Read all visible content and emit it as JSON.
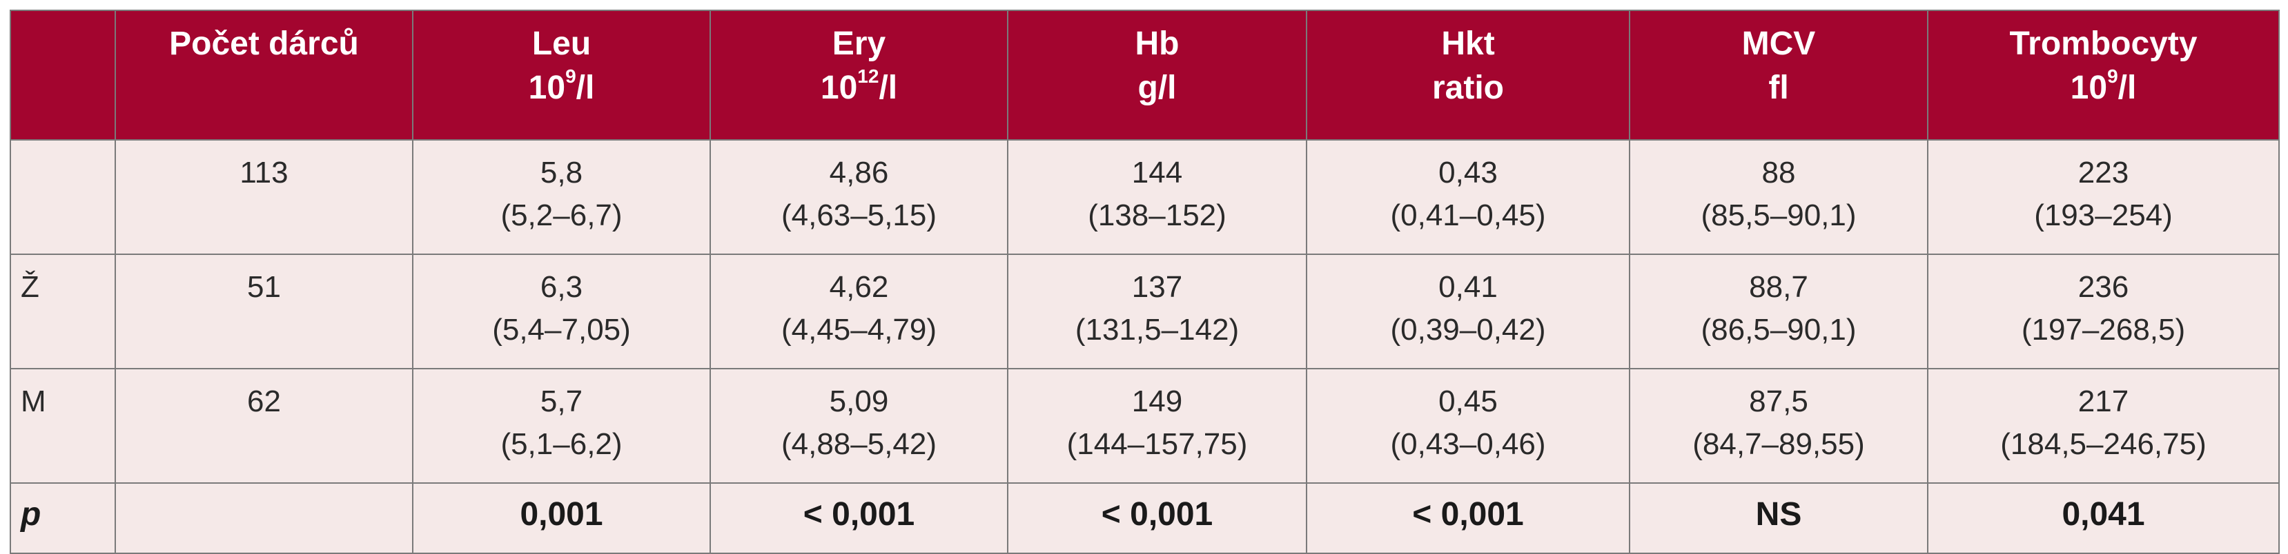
{
  "table": {
    "headers": [
      {
        "line1": "",
        "line2": ""
      },
      {
        "line1": "Počet dárců",
        "line2": ""
      },
      {
        "line1": "Leu",
        "line2": "10",
        "sup": "9",
        "line2_rest": "/l"
      },
      {
        "line1": "Ery",
        "line2": "10",
        "sup": "12",
        "line2_rest": "/l"
      },
      {
        "line1": "Hb",
        "line2": "g/l"
      },
      {
        "line1": "Hkt",
        "line2": "ratio"
      },
      {
        "line1": "MCV",
        "line2": "fl"
      },
      {
        "line1": "Trombocyty",
        "line2": "10",
        "sup": "9",
        "line2_rest": "/l"
      }
    ],
    "rows": [
      {
        "label": "",
        "count": "113",
        "cells": [
          {
            "median": "5,8",
            "range": "(5,2–6,7)"
          },
          {
            "median": "4,86",
            "range": "(4,63–5,15)"
          },
          {
            "median": "144",
            "range": "(138–152)"
          },
          {
            "median": "0,43",
            "range": "(0,41–0,45)"
          },
          {
            "median": "88",
            "range": "(85,5–90,1)"
          },
          {
            "median": "223",
            "range": "(193–254)"
          }
        ]
      },
      {
        "label": "Ž",
        "count": "51",
        "cells": [
          {
            "median": "6,3",
            "range": "(5,4–7,05)"
          },
          {
            "median": "4,62",
            "range": "(4,45–4,79)"
          },
          {
            "median": "137",
            "range": "(131,5–142)"
          },
          {
            "median": "0,41",
            "range": "(0,39–0,42)"
          },
          {
            "median": "88,7",
            "range": "(86,5–90,1)"
          },
          {
            "median": "236",
            "range": "(197–268,5)"
          }
        ]
      },
      {
        "label": "M",
        "count": "62",
        "cells": [
          {
            "median": "5,7",
            "range": "(5,1–6,2)"
          },
          {
            "median": "5,09",
            "range": "(4,88–5,42)"
          },
          {
            "median": "149",
            "range": "(144–157,75)"
          },
          {
            "median": "0,45",
            "range": "(0,43–0,46)"
          },
          {
            "median": "87,5",
            "range": "(84,7–89,55)"
          },
          {
            "median": "217",
            "range": "(184,5–246,75)"
          }
        ]
      }
    ],
    "p_row": {
      "label": "p",
      "count": "",
      "values": [
        "0,001",
        "< 0,001",
        "< 0,001",
        "< 0,001",
        "NS",
        "0,041"
      ]
    }
  },
  "colors": {
    "header_bg": "#a3052f",
    "cell_bg": "#f5e9e8",
    "border": "#7a7a7a"
  }
}
